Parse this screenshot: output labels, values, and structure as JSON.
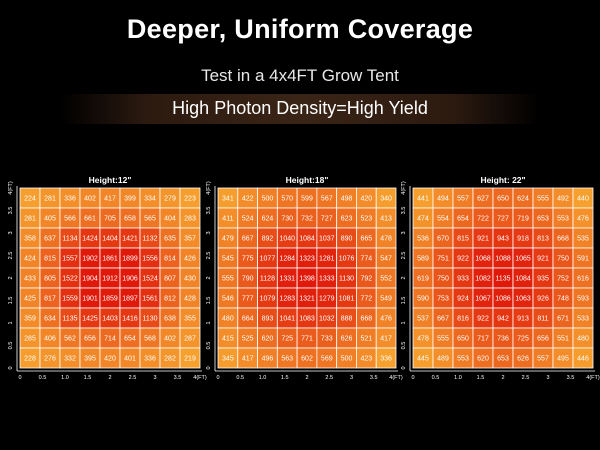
{
  "header": {
    "title": "Deeper, Uniform Coverage",
    "subtitle": "Test in a 4x4FT Grow Tent",
    "tagline": "High Photon Density=High Yield"
  },
  "colors": {
    "background": "#000000",
    "cell_low": "#f6a02e",
    "cell_high": "#e0190a",
    "grid_line": "#ffffff"
  },
  "chart_data": [
    {
      "type": "heatmap",
      "title": "Height:12\"",
      "x_unit_label": "4(FT)",
      "y_unit_label": "4(FT)",
      "x_ticks": [
        "0",
        "0.5",
        "1.0",
        "1.5",
        "2",
        "2.5",
        "3",
        "3.5",
        "4(FT)"
      ],
      "y_ticks": [
        "0",
        "0.5",
        "1",
        "1.5",
        "2",
        "2.5",
        "3",
        "3.5",
        "4(FT)"
      ],
      "rows": [
        [
          224,
          281,
          336,
          402,
          417,
          399,
          334,
          279,
          223
        ],
        [
          281,
          405,
          566,
          661,
          705,
          658,
          565,
          404,
          283
        ],
        [
          358,
          637,
          1134,
          1424,
          1404,
          1421,
          1132,
          635,
          357
        ],
        [
          424,
          815,
          1557,
          1902,
          1861,
          1899,
          1556,
          814,
          426
        ],
        [
          433,
          805,
          1522,
          1904,
          1912,
          1906,
          1524,
          807,
          430
        ],
        [
          425,
          817,
          1559,
          1901,
          1859,
          1897,
          1561,
          812,
          428
        ],
        [
          359,
          634,
          1135,
          1425,
          1403,
          1416,
          1130,
          638,
          355
        ],
        [
          285,
          406,
          562,
          656,
          714,
          654,
          568,
          402,
          287
        ],
        [
          228,
          276,
          332,
          395,
          420,
          401,
          336,
          282,
          219
        ]
      ]
    },
    {
      "type": "heatmap",
      "title": "Height:18\"",
      "x_unit_label": "4(FT)",
      "y_unit_label": "4(FT)",
      "x_ticks": [
        "0",
        "0.5",
        "1.0",
        "1.5",
        "2",
        "2.5",
        "3",
        "3.5",
        "4(FT)"
      ],
      "y_ticks": [
        "0",
        "0.5",
        "1",
        "1.5",
        "2",
        "2.5",
        "3",
        "3.5",
        "4(FT)"
      ],
      "rows": [
        [
          341,
          422,
          500,
          570,
          599,
          567,
          498,
          420,
          340
        ],
        [
          411,
          524,
          624,
          730,
          732,
          727,
          623,
          523,
          413
        ],
        [
          479,
          667,
          892,
          1040,
          1084,
          1037,
          890,
          665,
          478
        ],
        [
          545,
          775,
          1077,
          1284,
          1323,
          1281,
          1076,
          774,
          547
        ],
        [
          555,
          790,
          1128,
          1331,
          1398,
          1333,
          1130,
          792,
          552
        ],
        [
          546,
          777,
          1079,
          1283,
          1321,
          1279,
          1081,
          772,
          549
        ],
        [
          480,
          664,
          893,
          1041,
          1083,
          1032,
          888,
          668,
          476
        ],
        [
          415,
          525,
          620,
          725,
          771,
          733,
          626,
          521,
          417
        ],
        [
          345,
          417,
          496,
          563,
          602,
          569,
          500,
          423,
          336
        ]
      ]
    },
    {
      "type": "heatmap",
      "title": "Height: 22\"",
      "x_unit_label": "4(FT)",
      "y_unit_label": "4(FT)",
      "x_ticks": [
        "0",
        "0.5",
        "1.0",
        "1.5",
        "2",
        "2.5",
        "3",
        "3.5",
        "4(FT)"
      ],
      "y_ticks": [
        "0",
        "0.5",
        "1",
        "1.5",
        "2",
        "2.5",
        "3",
        "3.5",
        "4(FT)"
      ],
      "rows": [
        [
          441,
          494,
          557,
          627,
          650,
          624,
          555,
          492,
          440
        ],
        [
          474,
          554,
          654,
          722,
          727,
          719,
          653,
          553,
          476
        ],
        [
          536,
          670,
          815,
          921,
          943,
          918,
          813,
          668,
          535
        ],
        [
          589,
          751,
          922,
          1068,
          1088,
          1065,
          921,
          750,
          591
        ],
        [
          619,
          750,
          933,
          1082,
          1135,
          1084,
          935,
          752,
          616
        ],
        [
          590,
          753,
          924,
          1067,
          1086,
          1063,
          926,
          748,
          593
        ],
        [
          537,
          667,
          816,
          922,
          942,
          913,
          811,
          671,
          533
        ],
        [
          478,
          555,
          650,
          717,
          736,
          725,
          656,
          551,
          480
        ],
        [
          445,
          489,
          553,
          620,
          653,
          626,
          557,
          495,
          446
        ]
      ]
    }
  ]
}
